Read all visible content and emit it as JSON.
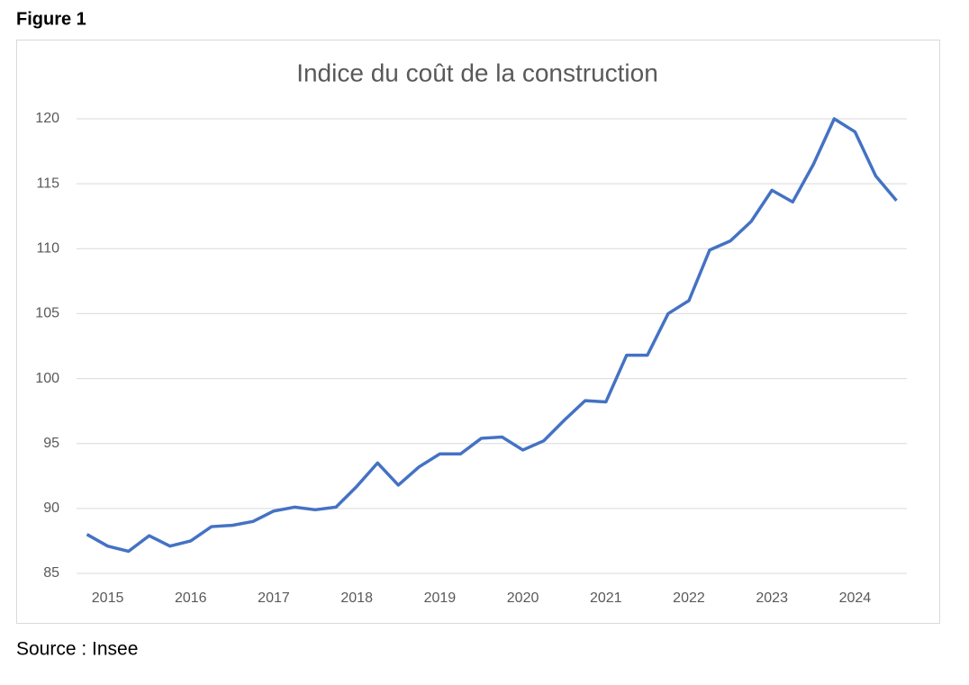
{
  "figure_label": "Figure 1",
  "source": "Source : Insee",
  "chart_data": {
    "type": "line",
    "title": "Indice du coût de la construction",
    "categories": [
      null,
      "2015",
      null,
      null,
      null,
      "2016",
      null,
      null,
      null,
      "2017",
      null,
      null,
      null,
      "2018",
      null,
      null,
      null,
      "2019",
      null,
      null,
      null,
      "2020",
      null,
      null,
      null,
      "2021",
      null,
      null,
      null,
      "2022",
      null,
      null,
      null,
      "2023",
      null,
      null,
      null,
      "2024",
      null,
      null
    ],
    "values": [
      88.0,
      87.1,
      86.7,
      87.9,
      87.1,
      87.5,
      88.6,
      88.7,
      89.0,
      89.8,
      90.1,
      89.9,
      90.1,
      91.7,
      93.5,
      91.8,
      93.2,
      94.2,
      94.2,
      95.4,
      95.5,
      94.5,
      95.2,
      96.8,
      98.3,
      98.2,
      101.8,
      101.8,
      105.0,
      106.0,
      109.9,
      110.6,
      112.1,
      114.5,
      113.6,
      116.5,
      120.0,
      119.0,
      115.6,
      113.7
    ],
    "color": "#4472c4",
    "ylim": [
      85,
      120
    ],
    "yticks": [
      85,
      90,
      95,
      100,
      105,
      110,
      115,
      120
    ],
    "grid": true
  }
}
